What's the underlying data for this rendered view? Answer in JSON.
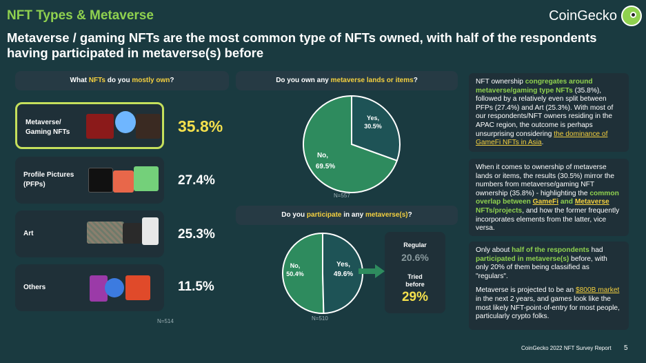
{
  "section_tag": "NFT Types & Metaverse",
  "brand": "CoinGecko",
  "headline": "Metaverse / gaming NFTs are the most common type of NFTs owned, with half of the respondents having participated in metaverse(s) before",
  "q1": {
    "parts": [
      "What ",
      "NFTs",
      " do you ",
      "mostly own",
      "?"
    ],
    "n": "N=514"
  },
  "q2": {
    "parts": [
      "Do you own any ",
      "metaverse lands or items",
      "?"
    ],
    "n": "N=557"
  },
  "q3": {
    "parts": [
      "Do you ",
      "participate",
      " in any ",
      "metaverse(s)",
      "?"
    ],
    "n": "N=510"
  },
  "regular_box": {
    "regular_label": "Regular",
    "regular_value": "20.6%",
    "tried_label_1": "Tried",
    "tried_label_2": "before",
    "tried_value": "29%"
  },
  "notes": {
    "n1": {
      "a": "NFT ownership ",
      "b": "congregates around metaverse/gaming type NFTs",
      "c": " (35.8%), followed by a relatively even split between PFPs (27.4%) and Art (25.3%). With most of our respondents/NFT owners residing in the APAC region, the outcome is perhaps unsurprising considering ",
      "d": "the dominance of GameFi NFTs in Asia",
      "e": "."
    },
    "n2": {
      "a": "When it comes to ownership of metaverse lands or items, the results (30.5%) mirror the numbers from metaverse/gaming NFT ownership (35.8%) - highlighting the ",
      "b": "common overlap between ",
      "c": "GameFi",
      "d": " and ",
      "e": "Metaverse",
      "f": " NFTs/projects",
      "g": ", and how the former frequently incorporates elements from the latter, vice versa."
    },
    "n3": {
      "a": "Only about ",
      "b": "half of the respondents",
      "c": " had ",
      "d": "participated in metaverse(s)",
      "e": " before, with only 20% of them being classified as \"regulars\".",
      "f": "Metaverse is projected to be an ",
      "g": "$800B market",
      "h": " in the next 2 years, and games look like the most likely NFT-point-of-entry for most people, particularly crypto folks."
    }
  },
  "footer": "CoinGecko 2022 NFT Survey Report",
  "page_number": "5",
  "colors": {
    "background": "#1a3a40",
    "panel": "#1f3038",
    "green_slice": "#2e8b5e",
    "dark_slice": "#1e5356",
    "highlight": "#f4d03f",
    "accent": "#8fd14f"
  },
  "chart_data": [
    {
      "type": "bar",
      "categories": [
        "Metaverse/ Gaming NFTs",
        "Profile Pictures (PFPs)",
        "Art",
        "Others"
      ],
      "values": [
        35.8,
        27.4,
        25.3,
        11.5
      ],
      "value_labels": [
        "35.8%",
        "27.4%",
        "25.3%",
        "11.5%"
      ]
    },
    {
      "type": "pie",
      "labels": [
        "Yes,",
        "No,"
      ],
      "values": [
        30.5,
        69.5
      ],
      "value_labels": [
        "30.5%",
        "69.5%"
      ]
    },
    {
      "type": "pie",
      "labels": [
        "Yes,",
        "No,"
      ],
      "values": [
        49.6,
        50.4
      ],
      "value_labels": [
        "49.6%",
        "50.4%"
      ]
    }
  ]
}
